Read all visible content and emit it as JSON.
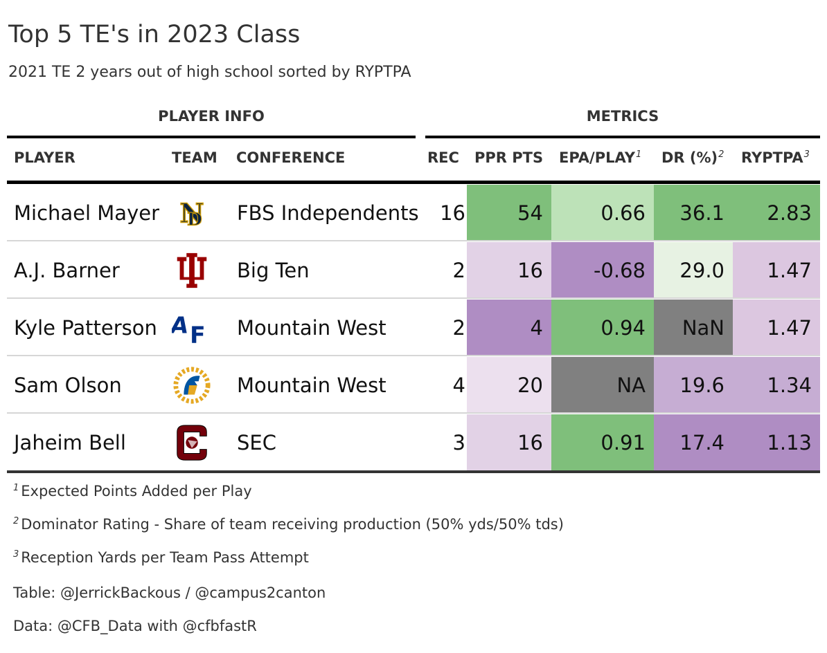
{
  "title": "Top 5 TE's in 2023 Class",
  "subtitle": "2021 TE 2 years out of high school sorted by RYPTPA",
  "spanners": {
    "player_info": "PLAYER INFO",
    "metrics": "METRICS"
  },
  "columns": {
    "player": "PLAYER",
    "team": "TEAM",
    "conference": "CONFERENCE",
    "rec": "REC",
    "ppr": "PPR PTS",
    "epa": "EPA/PLAY",
    "epa_mark": "1",
    "dr": "DR (%)",
    "dr_mark": "2",
    "ryptpa": "RYPTPA",
    "ryptpa_mark": "3"
  },
  "chart_data": {
    "type": "table",
    "title": "Top 5 TE's in 2023 Class",
    "rows": [
      {
        "player": "Michael Mayer",
        "team_logo": "notre-dame-logo",
        "conference": "FBS Independents",
        "rec": "16",
        "ppr": "54",
        "epa": "0.66",
        "dr": "36.1",
        "ryptpa": "2.83",
        "colors": {
          "ppr": "#7fbf7b",
          "epa": "#bde2b8",
          "dr": "#7fbf7b",
          "ryptpa": "#7fbf7b"
        }
      },
      {
        "player": "A.J. Barner",
        "team_logo": "indiana-logo",
        "conference": "Big Ten",
        "rec": "2",
        "ppr": "16",
        "epa": "-0.68",
        "dr": "29.0",
        "ryptpa": "1.47",
        "colors": {
          "ppr": "#e2d2e6",
          "epa": "#af8dc3",
          "dr": "#e7f2e3",
          "ryptpa": "#dcc7e0"
        }
      },
      {
        "player": "Kyle Patterson",
        "team_logo": "air-force-logo",
        "conference": "Mountain West",
        "rec": "2",
        "ppr": "4",
        "epa": "0.94",
        "dr": "NaN",
        "ryptpa": "1.47",
        "colors": {
          "ppr": "#af8dc3",
          "epa": "#7fbf7b",
          "dr": "#808080",
          "ryptpa": "#dcc7e0"
        }
      },
      {
        "player": "Sam Olson",
        "team_logo": "san-jose-state-logo",
        "conference": "Mountain West",
        "rec": "4",
        "ppr": "20",
        "epa": "NA",
        "dr": "19.6",
        "ryptpa": "1.34",
        "colors": {
          "ppr": "#ece0ee",
          "epa": "#808080",
          "dr": "#c6add3",
          "ryptpa": "#c6add3"
        }
      },
      {
        "player": "Jaheim Bell",
        "team_logo": "south-carolina-logo",
        "conference": "SEC",
        "rec": "3",
        "ppr": "16",
        "epa": "0.91",
        "dr": "17.4",
        "ryptpa": "1.13",
        "colors": {
          "ppr": "#e2d2e6",
          "epa": "#7fbf7b",
          "dr": "#af8dc3",
          "ryptpa": "#af8dc3"
        }
      }
    ]
  },
  "footnotes": [
    {
      "mark": "1",
      "text": "Expected Points Added per Play"
    },
    {
      "mark": "2",
      "text": "Dominator Rating - Share of team receiving production (50% yds/50% tds)"
    },
    {
      "mark": "3",
      "text": "Reception Yards per Team Pass Attempt"
    }
  ],
  "source_notes": [
    "Table: @JerrickBackous / @campus2canton",
    "Data: @CFB_Data with @cfbfastR"
  ]
}
